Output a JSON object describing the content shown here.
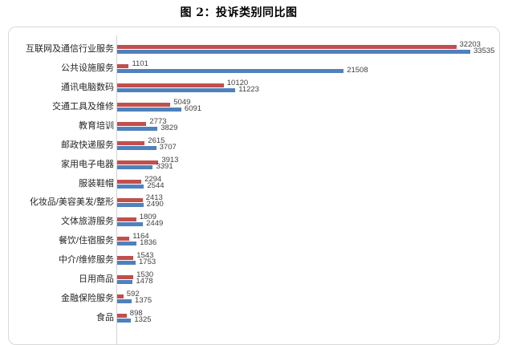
{
  "chart_data": {
    "type": "bar",
    "orientation": "horizontal",
    "title": "图 2：投诉类别同比图",
    "categories": [
      "互联网及通信行业服务",
      "公共设施服务",
      "通讯电脑数码",
      "交通工具及维修",
      "教育培训",
      "邮政快递服务",
      "家用电子电器",
      "服装鞋帽",
      "化妆品/美容美发/整形",
      "文体旅游服务",
      "餐饮/住宿服务",
      "中介/维修服务",
      "日用商品",
      "金融保险服务",
      "食品"
    ],
    "series": [
      {
        "name": "red",
        "color": "#c0504d",
        "values": [
          32203,
          1101,
          10120,
          5049,
          2773,
          2615,
          3913,
          2294,
          2413,
          1809,
          1164,
          1543,
          1530,
          592,
          898
        ]
      },
      {
        "name": "blue",
        "color": "#4f81bd",
        "values": [
          33535,
          21508,
          11223,
          6091,
          3829,
          3707,
          3391,
          2544,
          2490,
          2449,
          1836,
          1753,
          1478,
          1375,
          1325
        ]
      }
    ],
    "value_labels": "shown",
    "xlim": [
      0,
      35000
    ],
    "grid": "off",
    "legend": "none"
  }
}
